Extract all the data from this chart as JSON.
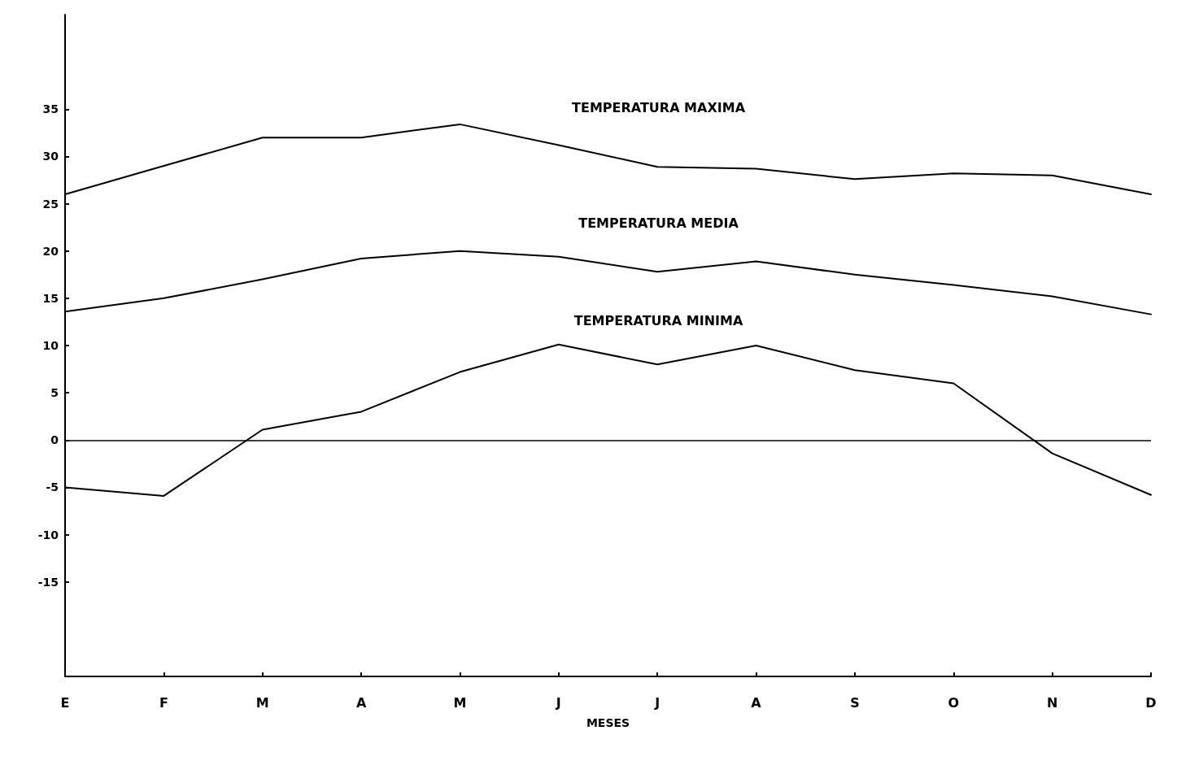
{
  "chart_data": {
    "type": "line",
    "xlabel": "MESES",
    "categories": [
      "E",
      "F",
      "M",
      "A",
      "M",
      "J",
      "J",
      "A",
      "S",
      "O",
      "N",
      "D"
    ],
    "series": [
      {
        "name": "TEMPERATURA MAXIMA",
        "color": "#000000",
        "values": [
          26,
          29,
          32,
          32,
          33.4,
          31.2,
          28.9,
          28.7,
          27.6,
          28.2,
          28,
          26
        ]
      },
      {
        "name": "TEMPERATURA MEDIA",
        "color": "#000000",
        "values": [
          13.6,
          15,
          17,
          19.2,
          20,
          19.4,
          17.8,
          18.9,
          17.5,
          16.4,
          15.2,
          13.3
        ]
      },
      {
        "name": "TEMPERATURA MINIMA",
        "color": "#000000",
        "values": [
          -5,
          -5.9,
          1.1,
          3,
          7.2,
          10.1,
          8,
          10,
          7.4,
          6,
          -1.4,
          -5.8
        ]
      }
    ],
    "ylim": [
      -25,
      45
    ],
    "yticks": [
      -15,
      -10,
      -5,
      0,
      5,
      10,
      15,
      20,
      25,
      30,
      35
    ],
    "ref_lines": [
      {
        "axis": "y",
        "value": 0,
        "color": "#000000"
      }
    ],
    "grid": false,
    "legend": false,
    "marker": "none",
    "line_style": "solid"
  }
}
